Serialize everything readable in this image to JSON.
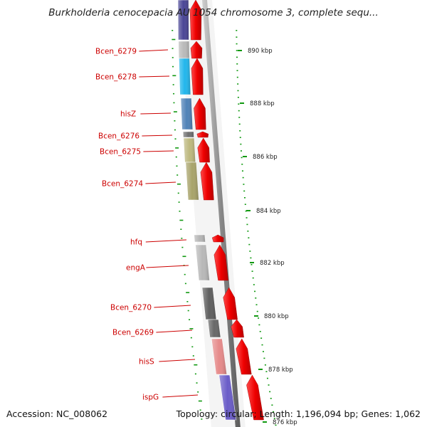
{
  "title": "Burkholderia cenocepacia AU 1054 chromosome 3, complete sequ...",
  "footer": {
    "accession": "Accession: NC_008062",
    "summary": "Topology: circular; Length: 1,196,094 bp; Genes: 1,062"
  },
  "ticks": [
    {
      "label": "890 kbp"
    },
    {
      "label": "888 kbp"
    },
    {
      "label": "886 kbp"
    },
    {
      "label": "884 kbp"
    },
    {
      "label": "882 kbp"
    },
    {
      "label": "880 kbp"
    },
    {
      "label": "878 kbp"
    },
    {
      "label": "876 kbp"
    }
  ],
  "genes": [
    {
      "label": "",
      "color": "#4a4696"
    },
    {
      "label": "Bcen_6279",
      "color": "#b9b9b9"
    },
    {
      "label": "Bcen_6278",
      "color": "#22b6ec"
    },
    {
      "label": "hisZ",
      "color": "#4f81b7"
    },
    {
      "label": "Bcen_6276",
      "color": "#707070"
    },
    {
      "label": "Bcen_6275",
      "color": "#bdb87e"
    },
    {
      "label": "Bcen_6274",
      "color": "#a8a36a"
    },
    {
      "label": "hfq",
      "color": "#b5b5b5"
    },
    {
      "label": "engA",
      "color": "#b8b8b8"
    },
    {
      "label": "Bcen_6270",
      "color": "#5e5e5e"
    },
    {
      "label": "Bcen_6269",
      "color": "#686868"
    },
    {
      "label": "hisS",
      "color": "#e68a8a"
    },
    {
      "label": "ispG",
      "color": "#6a5cc8"
    }
  ]
}
